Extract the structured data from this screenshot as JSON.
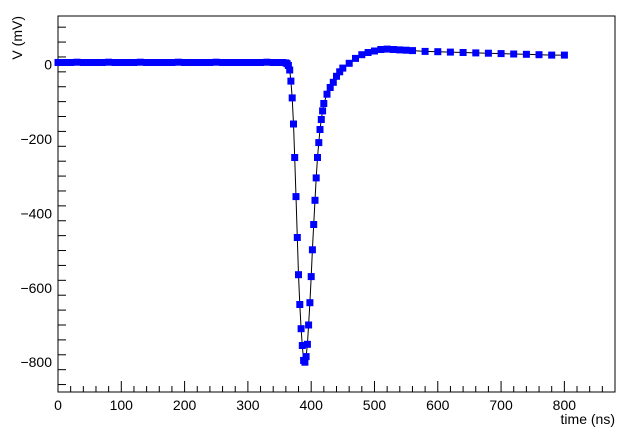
{
  "chart_data": {
    "type": "scatter",
    "xlabel": "time (ns)",
    "ylabel": "V (mV)",
    "xlim": [
      0,
      880
    ],
    "ylim": [
      -880,
      130
    ],
    "xticks": [
      0,
      100,
      200,
      300,
      400,
      500,
      600,
      700,
      800
    ],
    "yticks": [
      0,
      -200,
      -400,
      -600,
      -800
    ],
    "x_tick_labels": [
      "0",
      "100",
      "200",
      "300",
      "400",
      "500",
      "600",
      "700",
      "800"
    ],
    "y_tick_labels": [
      "0",
      "−200",
      "−400",
      "−600",
      "−800"
    ],
    "grid": false,
    "marker": "square",
    "marker_color": "#0000ff",
    "line_color": "#000000",
    "series": [
      {
        "x": [
          0,
          10,
          20,
          30,
          40,
          50,
          60,
          70,
          80,
          90,
          100,
          110,
          120,
          130,
          140,
          150,
          160,
          170,
          180,
          190,
          200,
          210,
          220,
          230,
          240,
          250,
          260,
          270,
          280,
          290,
          300,
          310,
          320,
          330,
          340,
          350,
          355,
          360,
          362,
          364,
          366,
          368,
          370,
          372,
          374,
          376,
          378,
          380,
          382,
          384,
          386,
          388,
          390,
          392,
          394,
          396,
          398,
          400,
          402,
          404,
          406,
          408,
          410,
          412,
          414,
          416,
          418,
          420,
          425,
          430,
          435,
          440,
          445,
          450,
          460,
          470,
          480,
          490,
          500,
          510,
          520,
          530,
          540,
          550,
          560,
          580,
          600,
          620,
          640,
          660,
          680,
          700,
          720,
          740,
          760,
          780,
          800
        ],
        "y": [
          5,
          5,
          5,
          6,
          5,
          5,
          5,
          5,
          6,
          5,
          5,
          5,
          5,
          6,
          5,
          5,
          5,
          5,
          5,
          6,
          5,
          5,
          5,
          5,
          5,
          6,
          5,
          5,
          5,
          5,
          5,
          5,
          5,
          6,
          5,
          5,
          5,
          4,
          2,
          -3,
          -15,
          -45,
          -90,
          -160,
          -250,
          -355,
          -465,
          -565,
          -645,
          -710,
          -755,
          -795,
          -800,
          -785,
          -752,
          -700,
          -640,
          -570,
          -498,
          -430,
          -365,
          -305,
          -250,
          -210,
          -175,
          -148,
          -125,
          -105,
          -80,
          -62,
          -48,
          -32,
          -20,
          -10,
          3,
          16,
          26,
          32,
          36,
          40,
          41,
          40,
          39,
          38,
          37,
          35,
          34,
          33,
          32,
          31,
          30,
          29,
          28,
          27,
          26,
          25,
          25
        ]
      }
    ]
  }
}
